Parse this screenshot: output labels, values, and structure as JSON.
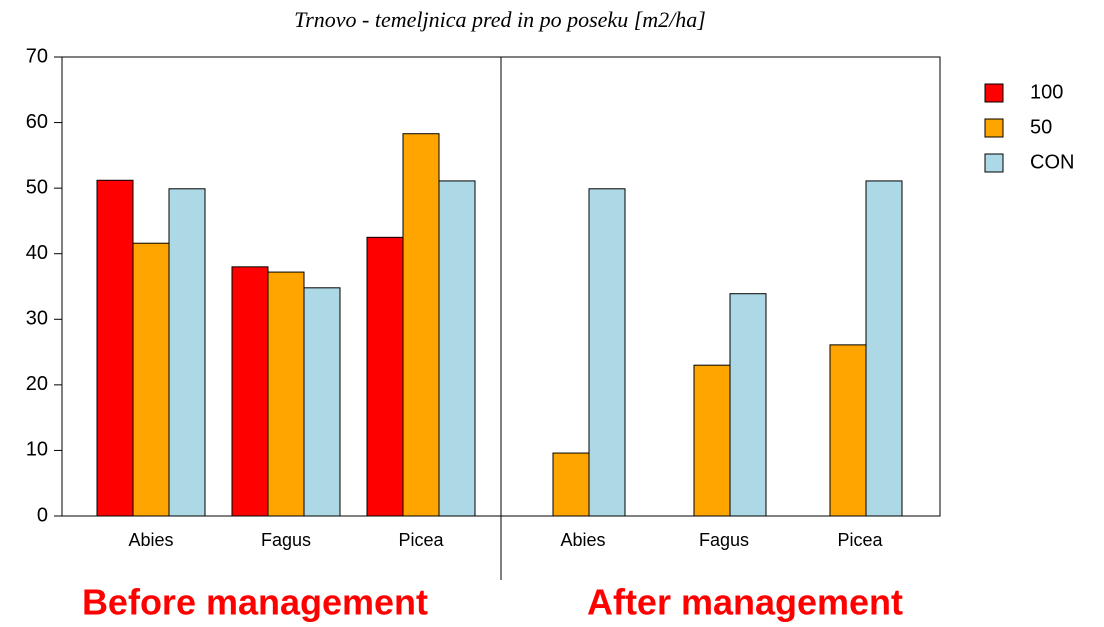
{
  "chart_data": {
    "type": "bar",
    "title": "Trnovo - temeljnica pred in po poseku [m2/ha]",
    "categories": [
      "Abies",
      "Fagus",
      "Picea",
      "Abies",
      "Fagus",
      "Picea"
    ],
    "series": [
      {
        "name": "100",
        "color": "#ff0000",
        "values": [
          51.2,
          38.0,
          42.5,
          null,
          null,
          null
        ]
      },
      {
        "name": "50",
        "color": "#ffa500",
        "values": [
          41.6,
          37.2,
          58.3,
          9.6,
          23.0,
          26.1
        ]
      },
      {
        "name": "CON",
        "color": "#add8e6",
        "values": [
          49.9,
          34.8,
          51.1,
          49.9,
          33.9,
          51.1
        ]
      }
    ],
    "ylim": [
      0,
      70
    ],
    "yticks": [
      0,
      10,
      20,
      30,
      40,
      50,
      60,
      70
    ],
    "grid": false,
    "legend": "right",
    "annotations": [
      "Before management",
      "After management"
    ]
  }
}
